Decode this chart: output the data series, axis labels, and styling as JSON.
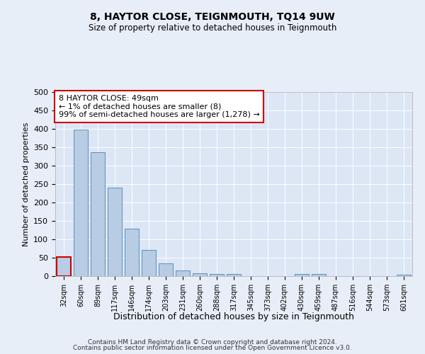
{
  "title": "8, HAYTOR CLOSE, TEIGNMOUTH, TQ14 9UW",
  "subtitle": "Size of property relative to detached houses in Teignmouth",
  "xlabel": "Distribution of detached houses by size in Teignmouth",
  "ylabel": "Number of detached properties",
  "categories": [
    "32sqm",
    "60sqm",
    "89sqm",
    "117sqm",
    "146sqm",
    "174sqm",
    "203sqm",
    "231sqm",
    "260sqm",
    "288sqm",
    "317sqm",
    "345sqm",
    "373sqm",
    "402sqm",
    "430sqm",
    "459sqm",
    "487sqm",
    "516sqm",
    "544sqm",
    "573sqm",
    "601sqm"
  ],
  "values": [
    52,
    398,
    337,
    240,
    128,
    72,
    35,
    16,
    7,
    5,
    5,
    0,
    0,
    0,
    6,
    5,
    0,
    0,
    0,
    0,
    4
  ],
  "bar_color": "#b8cce4",
  "bar_edge_color": "#5a8fbf",
  "highlight_bar_index": 0,
  "highlight_bar_edge_color": "#cc0000",
  "annotation_box_text": "8 HAYTOR CLOSE: 49sqm\n← 1% of detached houses are smaller (8)\n99% of semi-detached houses are larger (1,278) →",
  "ylim": [
    0,
    500
  ],
  "yticks": [
    0,
    50,
    100,
    150,
    200,
    250,
    300,
    350,
    400,
    450,
    500
  ],
  "bg_color": "#e8eef7",
  "plot_bg_color": "#dce6f5",
  "grid_color": "#ffffff",
  "footer_line1": "Contains HM Land Registry data © Crown copyright and database right 2024.",
  "footer_line2": "Contains public sector information licensed under the Open Government Licence v3.0."
}
